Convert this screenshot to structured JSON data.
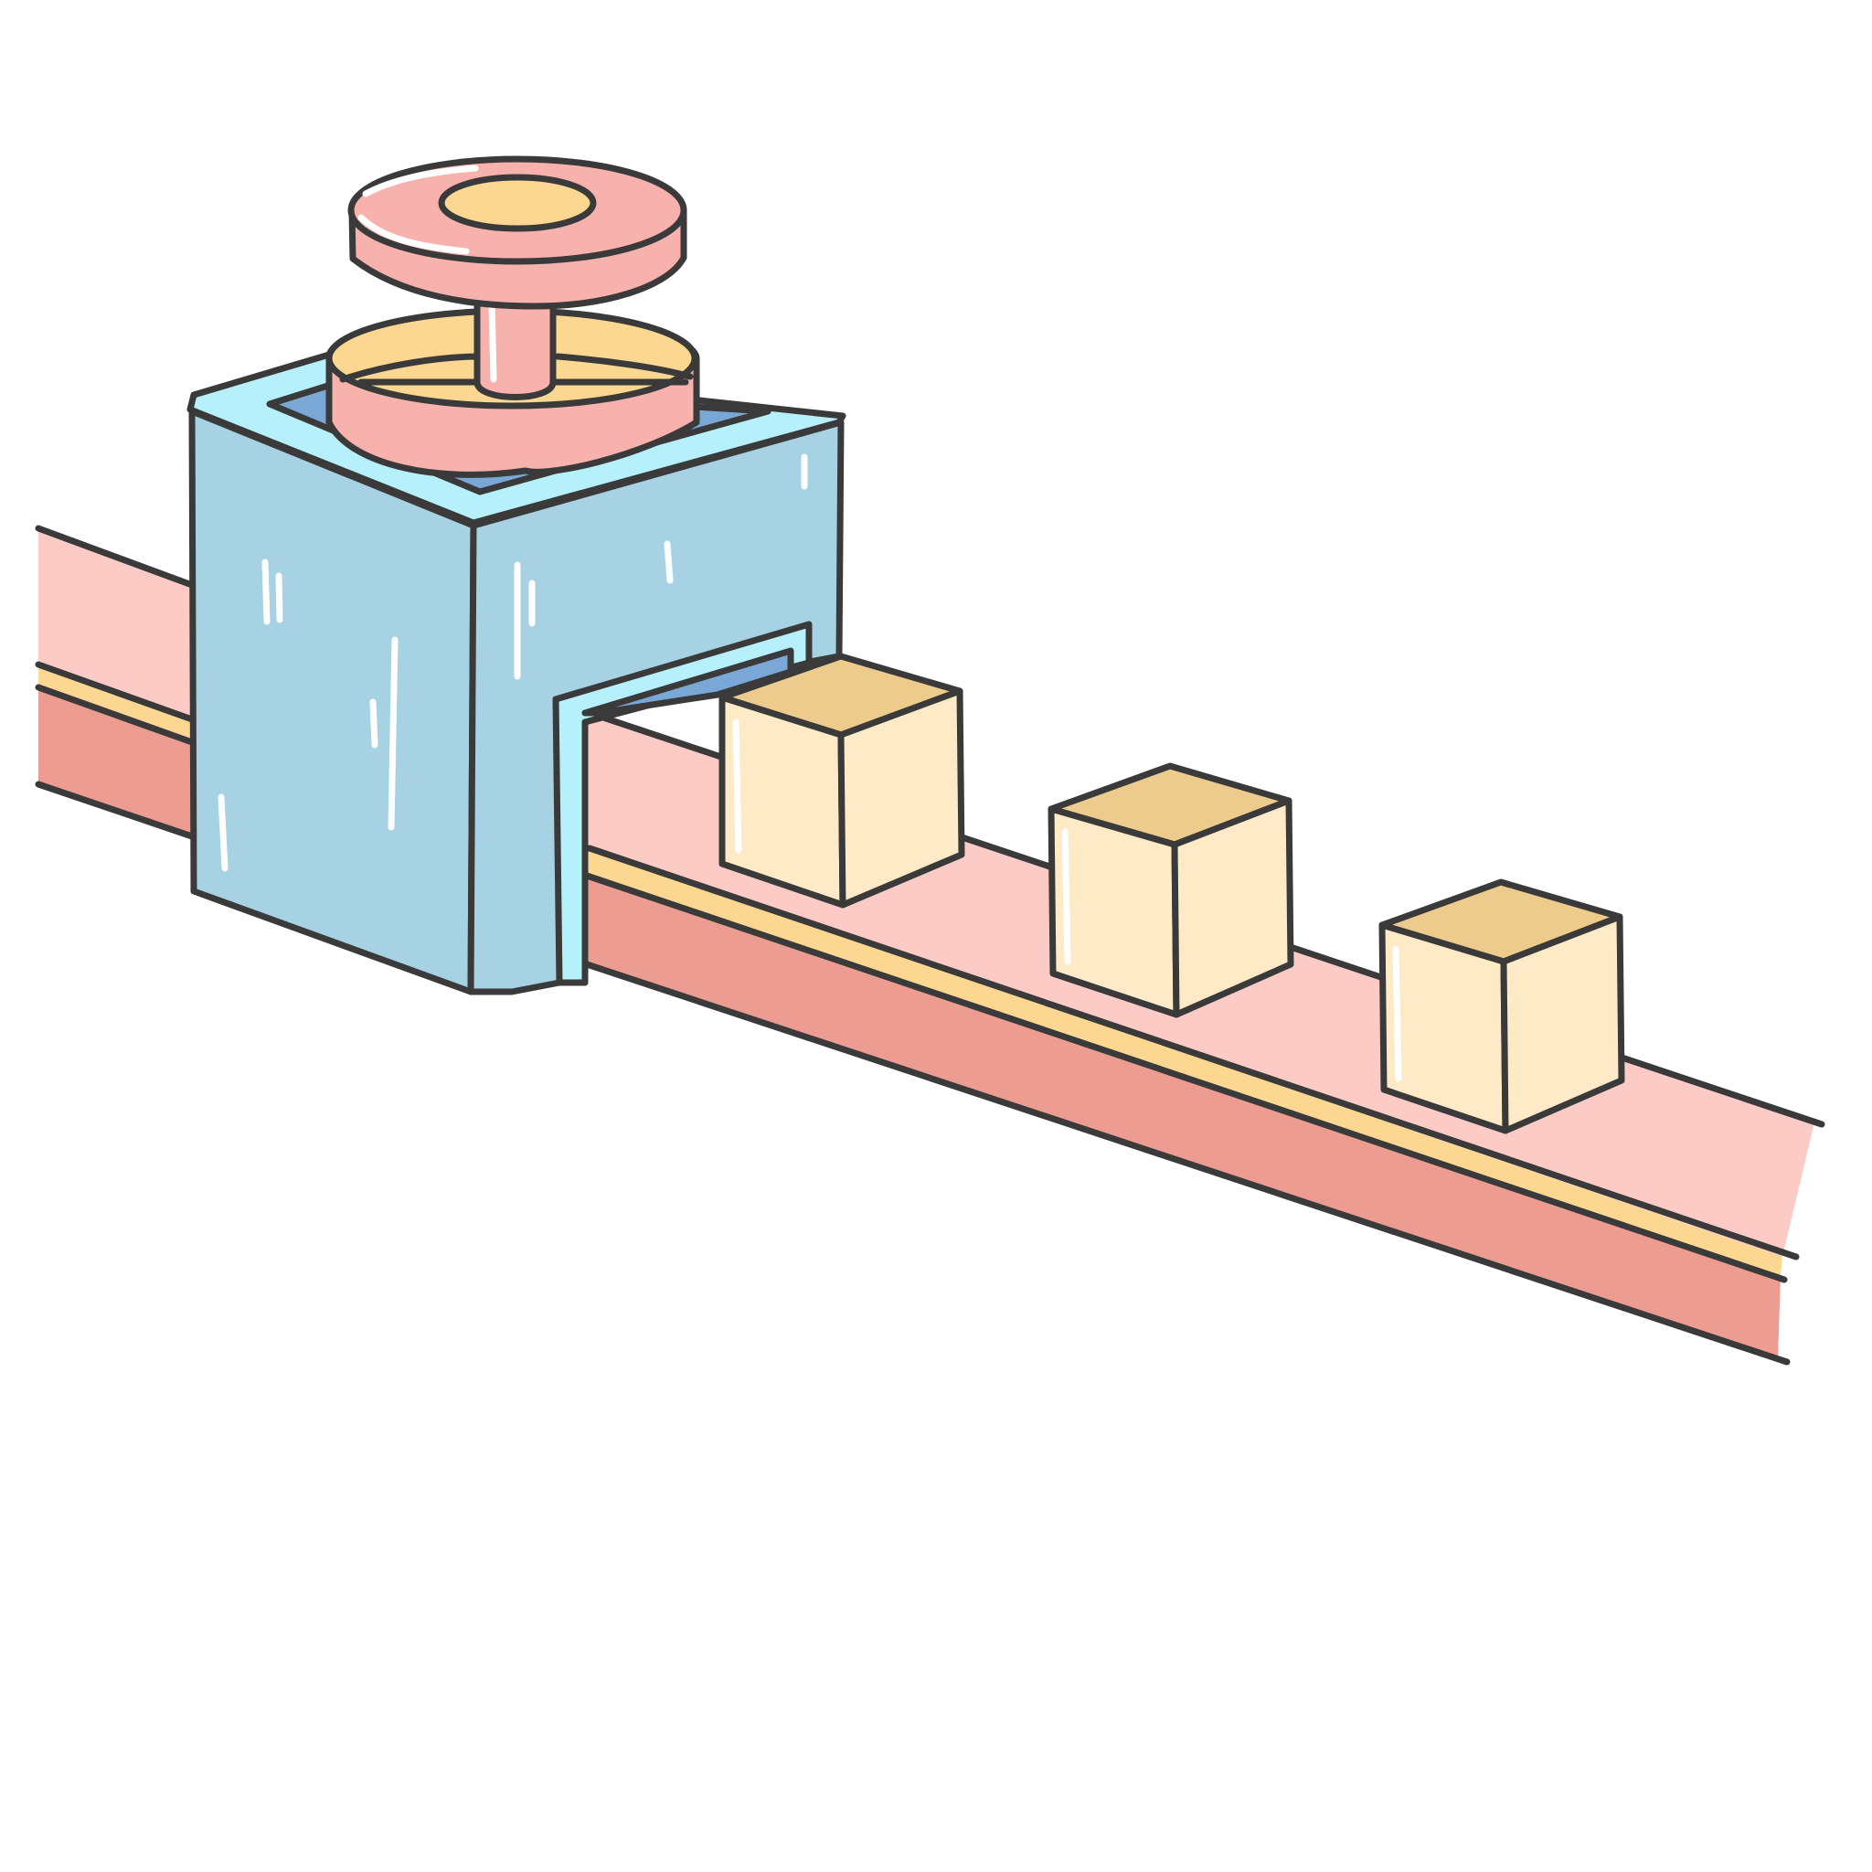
{
  "scene": {
    "description_tokens": [],
    "colors": {
      "outline": "#3a3a3a",
      "background": "#ffffff",
      "belt_top": "#fdcbc6",
      "belt_side": "#ec9c90",
      "belt_stripe": "#fcd792",
      "machine_body": "#a6d2e3",
      "machine_rim": "#b6f0fb",
      "machine_inner": "#7aa8d6",
      "press_pink": "#f8b2ae",
      "press_yellow": "#fcd792",
      "box_side": "#feeac7",
      "box_top": "#eccb8c",
      "highlight": "#ffffff"
    }
  }
}
